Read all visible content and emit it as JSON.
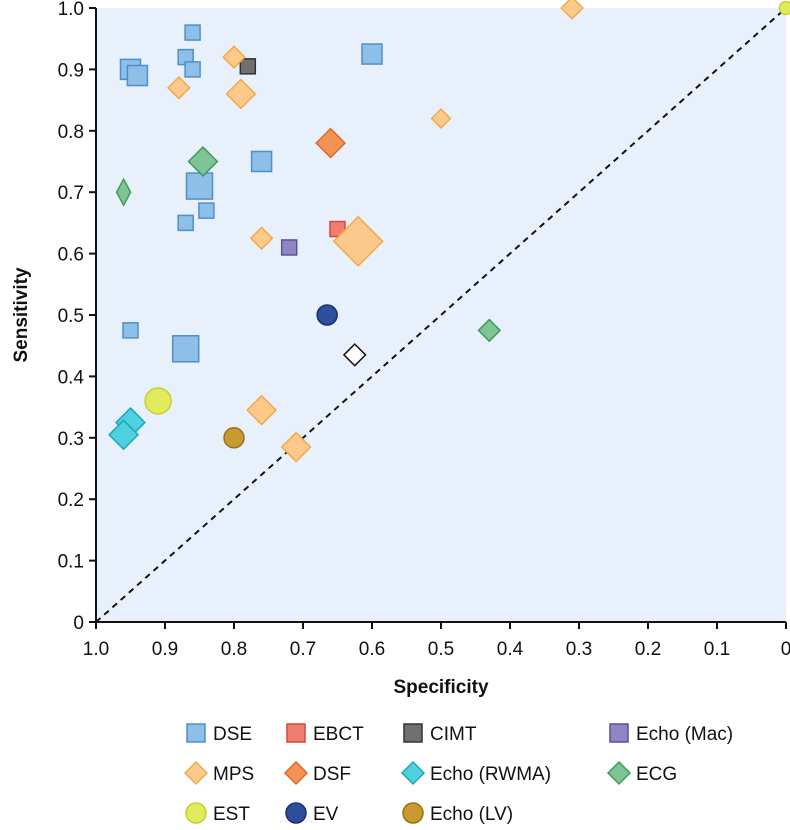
{
  "chart_data": {
    "type": "scatter",
    "xlabel": "Specificity",
    "ylabel": "Sensitivity",
    "xlim": [
      1.0,
      0
    ],
    "ylim": [
      0,
      1.0
    ],
    "x_reversed": true,
    "x_ticks": [
      "1.0",
      "0.9",
      "0.8",
      "0.7",
      "0.6",
      "0.5",
      "0.4",
      "0.3",
      "0.2",
      "0.1",
      "0"
    ],
    "y_ticks": [
      "0",
      "0.1",
      "0.2",
      "0.3",
      "0.4",
      "0.5",
      "0.6",
      "0.7",
      "0.8",
      "0.9",
      "1.0"
    ],
    "grid": false,
    "background_color": "#e8f1fb",
    "reference_line": {
      "style": "dashed",
      "from": [
        1.0,
        0
      ],
      "to": [
        0,
        1.0
      ]
    },
    "legend_position": "bottom",
    "series": [
      {
        "name": "DSE",
        "shape": "square",
        "color": "#8dbfe8",
        "stroke": "#4f8fc8",
        "points": [
          {
            "x": 0.86,
            "y": 0.96,
            "size": "s"
          },
          {
            "x": 0.95,
            "y": 0.9,
            "size": "m"
          },
          {
            "x": 0.94,
            "y": 0.89,
            "size": "m"
          },
          {
            "x": 0.87,
            "y": 0.92,
            "size": "s"
          },
          {
            "x": 0.86,
            "y": 0.9,
            "size": "s"
          },
          {
            "x": 0.6,
            "y": 0.925,
            "size": "m"
          },
          {
            "x": 0.76,
            "y": 0.75,
            "size": "m"
          },
          {
            "x": 0.85,
            "y": 0.71,
            "size": "l"
          },
          {
            "x": 0.87,
            "y": 0.65,
            "size": "s"
          },
          {
            "x": 0.84,
            "y": 0.67,
            "size": "s"
          },
          {
            "x": 0.95,
            "y": 0.475,
            "size": "s"
          },
          {
            "x": 0.87,
            "y": 0.445,
            "size": "l"
          }
        ]
      },
      {
        "name": "EBCT",
        "shape": "square",
        "color": "#f07e6e",
        "stroke": "#d8473a",
        "points": [
          {
            "x": 0.65,
            "y": 0.64,
            "size": "s"
          }
        ]
      },
      {
        "name": "CIMT",
        "shape": "square",
        "color": "#707070",
        "stroke": "#333333",
        "points": [
          {
            "x": 0.78,
            "y": 0.905,
            "size": "s"
          }
        ]
      },
      {
        "name": "Echo (Mac)",
        "shape": "square",
        "color": "#8f84c4",
        "stroke": "#5b4f99",
        "points": [
          {
            "x": 0.72,
            "y": 0.61,
            "size": "s"
          }
        ]
      },
      {
        "name": "MPS",
        "shape": "diamond",
        "color": "#fbc98a",
        "stroke": "#f0a94c",
        "points": [
          {
            "x": 0.31,
            "y": 1.0,
            "size": "s"
          },
          {
            "x": 0.8,
            "y": 0.92,
            "size": "s"
          },
          {
            "x": 0.88,
            "y": 0.87,
            "size": "s"
          },
          {
            "x": 0.79,
            "y": 0.86,
            "size": "m"
          },
          {
            "x": 0.5,
            "y": 0.82,
            "size": "xs"
          },
          {
            "x": 0.76,
            "y": 0.625,
            "size": "s"
          },
          {
            "x": 0.62,
            "y": 0.62,
            "size": "xl"
          },
          {
            "x": 0.76,
            "y": 0.345,
            "size": "m"
          },
          {
            "x": 0.71,
            "y": 0.285,
            "size": "m"
          }
        ]
      },
      {
        "name": "DSF",
        "shape": "diamond",
        "color": "#f49454",
        "stroke": "#dc6a26",
        "points": [
          {
            "x": 0.66,
            "y": 0.78,
            "size": "m"
          }
        ]
      },
      {
        "name": "Echo (RWMA)",
        "shape": "diamond",
        "color": "#4fd0de",
        "stroke": "#1aa6bb",
        "points": [
          {
            "x": 0.95,
            "y": 0.325,
            "size": "m"
          },
          {
            "x": 0.96,
            "y": 0.305,
            "size": "m"
          }
        ]
      },
      {
        "name": "ECG",
        "shape": "diamond",
        "color": "#7fc494",
        "stroke": "#3f9a5c",
        "points": [
          {
            "x": 0.96,
            "y": 0.7,
            "size": "tall"
          },
          {
            "x": 0.845,
            "y": 0.75,
            "size": "m"
          },
          {
            "x": 0.43,
            "y": 0.475,
            "size": "s"
          }
        ]
      },
      {
        "name": "EST",
        "shape": "circle",
        "color": "#e2ea5e",
        "stroke": "#c7cf2e",
        "points": [
          {
            "x": 0.91,
            "y": 0.36,
            "size": "l"
          },
          {
            "x": 0.0,
            "y": 1.0,
            "size": "xs"
          }
        ]
      },
      {
        "name": "EV",
        "shape": "circle",
        "color": "#2f4e9c",
        "stroke": "#1a2f6b",
        "points": [
          {
            "x": 0.665,
            "y": 0.5,
            "size": "m"
          }
        ]
      },
      {
        "name": "Echo (LV)",
        "shape": "circle",
        "color": "#c99a30",
        "stroke": "#9a7016",
        "points": [
          {
            "x": 0.8,
            "y": 0.3,
            "size": "m"
          }
        ]
      },
      {
        "name": "",
        "shape": "diamond",
        "color": "#ffffff",
        "stroke": "#111111",
        "points": [
          {
            "x": 0.625,
            "y": 0.435,
            "size": "s"
          }
        ]
      }
    ]
  },
  "legend": [
    {
      "label": "DSE",
      "shape": "square",
      "color": "#8dbfe8",
      "stroke": "#4f8fc8"
    },
    {
      "label": "EBCT",
      "shape": "square",
      "color": "#f07e6e",
      "stroke": "#d8473a"
    },
    {
      "label": "CIMT",
      "shape": "square",
      "color": "#707070",
      "stroke": "#333333"
    },
    {
      "label": "Echo (Mac)",
      "shape": "square",
      "color": "#8f84c4",
      "stroke": "#5b4f99"
    },
    {
      "label": "MPS",
      "shape": "diamond",
      "color": "#fbc98a",
      "stroke": "#f0a94c"
    },
    {
      "label": "DSF",
      "shape": "diamond",
      "color": "#f49454",
      "stroke": "#dc6a26"
    },
    {
      "label": "Echo (RWMA)",
      "shape": "diamond",
      "color": "#4fd0de",
      "stroke": "#1aa6bb"
    },
    {
      "label": "ECG",
      "shape": "diamond",
      "color": "#7fc494",
      "stroke": "#3f9a5c"
    },
    {
      "label": "EST",
      "shape": "circle",
      "color": "#e2ea5e",
      "stroke": "#c7cf2e"
    },
    {
      "label": "EV",
      "shape": "circle",
      "color": "#2f4e9c",
      "stroke": "#1a2f6b"
    },
    {
      "label": "Echo (LV)",
      "shape": "circle",
      "color": "#c99a30",
      "stroke": "#9a7016"
    }
  ]
}
